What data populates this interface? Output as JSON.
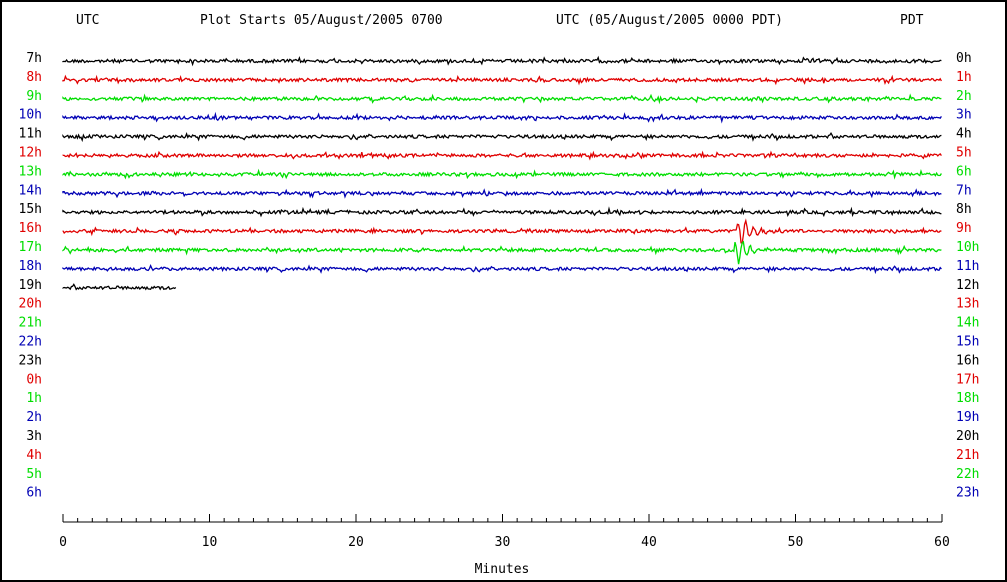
{
  "header": {
    "utc_left": "UTC",
    "plot_starts": "Plot Starts 05/August/2005 0700",
    "utc_pdt": "UTC (05/August/2005 0000 PDT)",
    "pdt_right": "PDT"
  },
  "chart_data": {
    "type": "line",
    "title": "Plot Starts 05/August/2005 0700",
    "xlabel": "Minutes",
    "xlim": [
      0,
      60
    ],
    "xticks": [
      0,
      10,
      20,
      30,
      40,
      50,
      60
    ],
    "left_axis_label": "UTC",
    "right_axis_label": "PDT",
    "rows": [
      {
        "utc": "7h",
        "pdt": "0h",
        "color": "#000000",
        "end_minute": 60
      },
      {
        "utc": "8h",
        "pdt": "1h",
        "color": "#e00000",
        "end_minute": 60
      },
      {
        "utc": "9h",
        "pdt": "2h",
        "color": "#00dd00",
        "end_minute": 60
      },
      {
        "utc": "10h",
        "pdt": "3h",
        "color": "#0000b4",
        "end_minute": 60
      },
      {
        "utc": "11h",
        "pdt": "4h",
        "color": "#000000",
        "end_minute": 60
      },
      {
        "utc": "12h",
        "pdt": "5h",
        "color": "#e00000",
        "end_minute": 60
      },
      {
        "utc": "13h",
        "pdt": "6h",
        "color": "#00dd00",
        "end_minute": 60
      },
      {
        "utc": "14h",
        "pdt": "7h",
        "color": "#0000b4",
        "end_minute": 60
      },
      {
        "utc": "15h",
        "pdt": "8h",
        "color": "#000000",
        "end_minute": 60
      },
      {
        "utc": "16h",
        "pdt": "9h",
        "color": "#e00000",
        "end_minute": 60
      },
      {
        "utc": "17h",
        "pdt": "10h",
        "color": "#00dd00",
        "end_minute": 60
      },
      {
        "utc": "18h",
        "pdt": "11h",
        "color": "#0000b4",
        "end_minute": 60
      },
      {
        "utc": "19h",
        "pdt": "12h",
        "color": "#000000",
        "end_minute": 7.7
      },
      {
        "utc": "20h",
        "pdt": "13h",
        "color": "#e00000",
        "end_minute": 0
      },
      {
        "utc": "21h",
        "pdt": "14h",
        "color": "#00dd00",
        "end_minute": 0
      },
      {
        "utc": "22h",
        "pdt": "15h",
        "color": "#0000b4",
        "end_minute": 0
      },
      {
        "utc": "23h",
        "pdt": "16h",
        "color": "#000000",
        "end_minute": 0
      },
      {
        "utc": "0h",
        "pdt": "17h",
        "color": "#e00000",
        "end_minute": 0
      },
      {
        "utc": "1h",
        "pdt": "18h",
        "color": "#00dd00",
        "end_minute": 0
      },
      {
        "utc": "2h",
        "pdt": "19h",
        "color": "#0000b4",
        "end_minute": 0
      },
      {
        "utc": "3h",
        "pdt": "20h",
        "color": "#000000",
        "end_minute": 0
      },
      {
        "utc": "4h",
        "pdt": "21h",
        "color": "#e00000",
        "end_minute": 0
      },
      {
        "utc": "5h",
        "pdt": "22h",
        "color": "#00dd00",
        "end_minute": 0
      },
      {
        "utc": "6h",
        "pdt": "23h",
        "color": "#0000b4",
        "end_minute": 0
      }
    ],
    "events": [
      {
        "utc": "16h",
        "minute": 46.2,
        "amplitude": "large"
      },
      {
        "utc": "17h",
        "minute": 46.0,
        "amplitude": "large"
      }
    ]
  }
}
